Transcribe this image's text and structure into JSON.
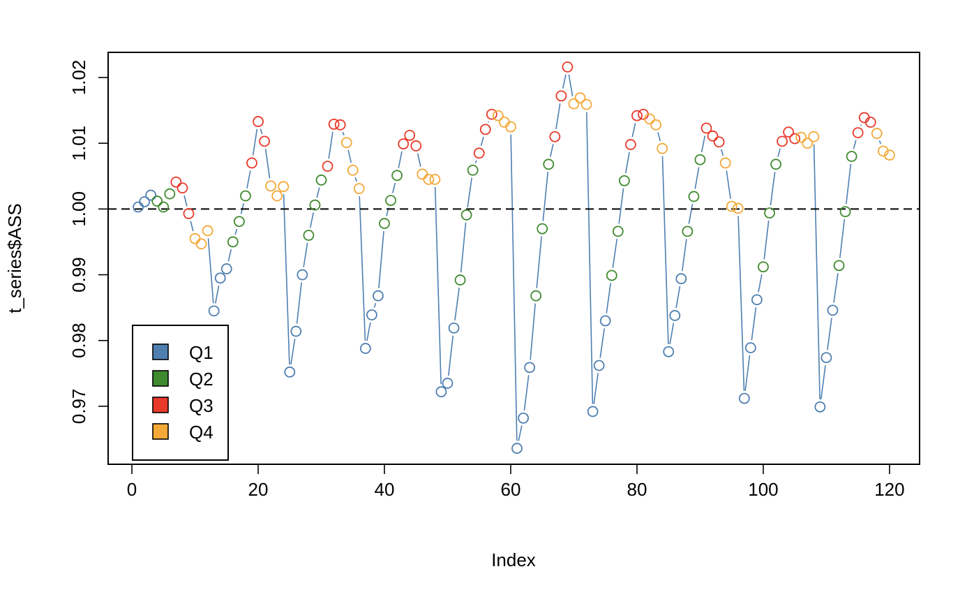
{
  "chart_data": {
    "type": "scatter",
    "title": "",
    "xlabel": "Index",
    "ylabel": "t_series$ASS",
    "xlim": [
      1,
      120
    ],
    "ylim": [
      0.9635,
      1.0215
    ],
    "x_ticks": [
      0,
      20,
      40,
      60,
      80,
      100,
      120
    ],
    "x_tick_labels": [
      "0",
      "20",
      "40",
      "60",
      "80",
      "100",
      "120"
    ],
    "y_ticks": [
      0.97,
      0.98,
      0.99,
      1.0,
      1.01,
      1.02
    ],
    "y_tick_labels": [
      "0.97",
      "0.98",
      "0.99",
      "1.00",
      "1.01",
      "1.02"
    ],
    "reference_line": {
      "y": 1.0,
      "style": "dashed",
      "color": "#000000"
    },
    "connecting_line": {
      "type": "b",
      "color": "#4e7fb0"
    },
    "grid": false,
    "legend": {
      "position": "bottom-left",
      "entries": [
        {
          "label": "Q1",
          "color": "#4e7fb0"
        },
        {
          "label": "Q2",
          "color": "#3f8a2f"
        },
        {
          "label": "Q3",
          "color": "#e8392a"
        },
        {
          "label": "Q4",
          "color": "#f3a838"
        }
      ]
    },
    "quarter_colors": [
      "#4e7fb0",
      "#3f8a2f",
      "#e8392a",
      "#f3a838"
    ],
    "values": [
      1.0003,
      1.0011,
      1.0021,
      1.0012,
      1.0003,
      1.0023,
      1.0041,
      1.0032,
      0.9993,
      0.9955,
      0.9947,
      0.9967,
      0.9845,
      0.9895,
      0.9909,
      0.995,
      0.9981,
      1.002,
      1.007,
      1.0133,
      1.0103,
      1.0035,
      1.002,
      1.0034,
      0.9752,
      0.9814,
      0.99,
      0.996,
      1.0006,
      1.0044,
      1.0065,
      1.0129,
      1.0128,
      1.0101,
      1.0059,
      1.0031,
      0.9788,
      0.9839,
      0.9868,
      0.9978,
      1.0013,
      1.0051,
      1.0099,
      1.0112,
      1.0096,
      1.0053,
      1.0045,
      1.0045,
      0.9722,
      0.9735,
      0.9819,
      0.9892,
      0.9991,
      1.0059,
      1.0085,
      1.0121,
      1.0144,
      1.0142,
      1.0132,
      1.0125,
      0.9636,
      0.9682,
      0.9759,
      0.9868,
      0.997,
      1.0068,
      1.011,
      1.0172,
      1.0216,
      1.016,
      1.0169,
      1.0159,
      0.9692,
      0.9762,
      0.983,
      0.9899,
      0.9966,
      1.0043,
      1.0098,
      1.0142,
      1.0144,
      1.0137,
      1.0128,
      1.0092,
      0.9783,
      0.9838,
      0.9894,
      0.9966,
      1.0019,
      1.0075,
      1.0123,
      1.0111,
      1.0102,
      1.007,
      1.0004,
      1.0001,
      0.9712,
      0.9789,
      0.9862,
      0.9912,
      0.9994,
      1.0068,
      1.0103,
      1.0117,
      1.0107,
      1.0109,
      1.01,
      1.011,
      0.9699,
      0.9774,
      0.9846,
      0.9914,
      0.9996,
      1.008,
      1.0116,
      1.0139,
      1.0132,
      1.0115,
      1.0088,
      1.0082
    ]
  }
}
